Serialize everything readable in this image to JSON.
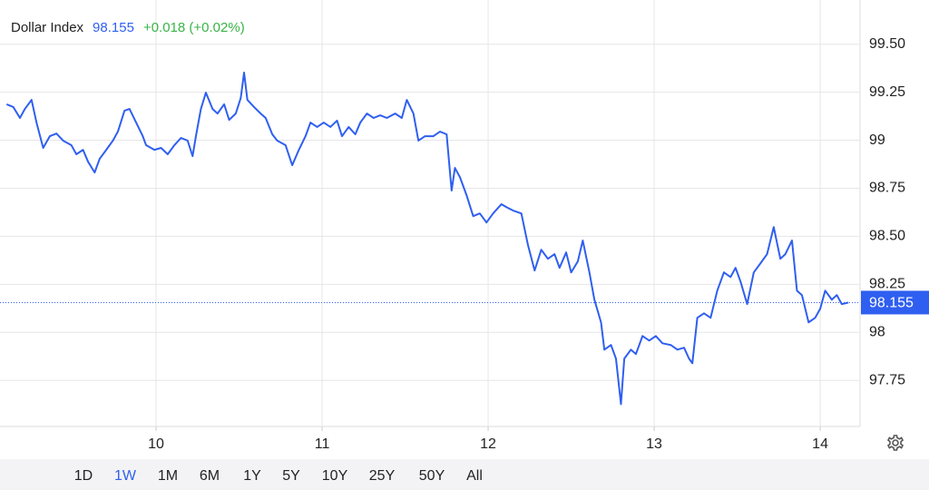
{
  "chart_data": {
    "type": "line",
    "title": "Dollar Index",
    "last_value": 98.155,
    "change": "+0.018 (+0.02%)",
    "color": "#2f5ff0",
    "change_color": "#38b446",
    "grid": true,
    "x": [
      9.1,
      9.14,
      9.18,
      9.21,
      9.25,
      9.28,
      9.32,
      9.36,
      9.4,
      9.44,
      9.49,
      9.52,
      9.56,
      9.59,
      9.63,
      9.66,
      9.7,
      9.74,
      9.77,
      9.81,
      9.84,
      9.88,
      9.92,
      9.94,
      9.99,
      10.03,
      10.07,
      10.11,
      10.15,
      10.19,
      10.22,
      10.24,
      10.27,
      10.3,
      10.34,
      10.37,
      10.41,
      10.44,
      10.48,
      10.51,
      10.53,
      10.55,
      10.59,
      10.63,
      10.66,
      10.7,
      10.73,
      10.78,
      10.82,
      10.86,
      10.9,
      10.93,
      10.97,
      11.01,
      11.05,
      11.09,
      11.12,
      11.16,
      11.2,
      11.23,
      11.27,
      11.31,
      11.35,
      11.39,
      11.44,
      11.48,
      11.51,
      11.55,
      11.58,
      11.62,
      11.67,
      11.71,
      11.75,
      11.78,
      11.8,
      11.83,
      11.87,
      11.91,
      11.95,
      11.99,
      12.03,
      12.08,
      12.11,
      12.15,
      12.2,
      12.24,
      12.28,
      12.32,
      12.36,
      12.4,
      12.43,
      12.47,
      12.5,
      12.54,
      12.57,
      12.61,
      12.64,
      12.68,
      12.7,
      12.74,
      12.77,
      12.8,
      12.82,
      12.86,
      12.89,
      12.93,
      12.97,
      13.01,
      13.05,
      13.1,
      13.14,
      13.18,
      13.21,
      13.23,
      13.26,
      13.3,
      13.34,
      13.38,
      13.42,
      13.46,
      13.49,
      13.52,
      13.56,
      13.6,
      13.64,
      13.68,
      13.72,
      13.76,
      13.79,
      13.83,
      13.86,
      13.89,
      13.93,
      13.97,
      14.0,
      14.03,
      14.07,
      14.1,
      14.13,
      14.17
    ],
    "values": [
      99.187,
      99.173,
      99.116,
      99.163,
      99.21,
      99.092,
      98.96,
      99.021,
      99.035,
      98.998,
      98.974,
      98.927,
      98.95,
      98.889,
      98.832,
      98.903,
      98.95,
      98.998,
      99.045,
      99.154,
      99.163,
      99.092,
      99.021,
      98.974,
      98.95,
      98.96,
      98.927,
      98.974,
      99.012,
      98.998,
      98.917,
      99.021,
      99.163,
      99.248,
      99.163,
      99.139,
      99.187,
      99.106,
      99.139,
      99.22,
      99.352,
      99.21,
      99.173,
      99.139,
      99.116,
      99.031,
      98.998,
      98.974,
      98.87,
      98.95,
      99.021,
      99.092,
      99.069,
      99.092,
      99.069,
      99.102,
      99.021,
      99.069,
      99.031,
      99.092,
      99.139,
      99.116,
      99.13,
      99.116,
      99.139,
      99.116,
      99.21,
      99.139,
      98.998,
      99.021,
      99.021,
      99.045,
      99.031,
      98.738,
      98.856,
      98.808,
      98.714,
      98.605,
      98.619,
      98.572,
      98.619,
      98.667,
      98.652,
      98.634,
      98.619,
      98.454,
      98.322,
      98.43,
      98.383,
      98.407,
      98.336,
      98.416,
      98.312,
      98.369,
      98.478,
      98.312,
      98.17,
      98.052,
      97.91,
      97.934,
      97.863,
      97.626,
      97.863,
      97.91,
      97.887,
      97.981,
      97.957,
      97.981,
      97.943,
      97.934,
      97.91,
      97.92,
      97.863,
      97.839,
      98.076,
      98.099,
      98.076,
      98.217,
      98.312,
      98.288,
      98.336,
      98.265,
      98.147,
      98.312,
      98.359,
      98.407,
      98.548,
      98.383,
      98.407,
      98.478,
      98.217,
      98.194,
      98.052,
      98.076,
      98.123,
      98.217,
      98.17,
      98.194,
      98.147,
      98.155
    ],
    "xlim": [
      9.06,
      14.24
    ],
    "xticks": [
      10,
      11,
      12,
      13,
      14
    ],
    "ylim": [
      97.51,
      99.73
    ],
    "yticks": [
      {
        "value": 99.5,
        "label": "99.50"
      },
      99.25,
      99,
      98.75,
      {
        "value": 98.5,
        "label": "98.50"
      },
      98.25,
      98,
      97.75
    ],
    "ranges": [
      "1D",
      "1W",
      "1M",
      "6M",
      "1Y",
      "5Y",
      "10Y",
      "25Y",
      "50Y",
      "All"
    ],
    "active_range": "1W"
  }
}
